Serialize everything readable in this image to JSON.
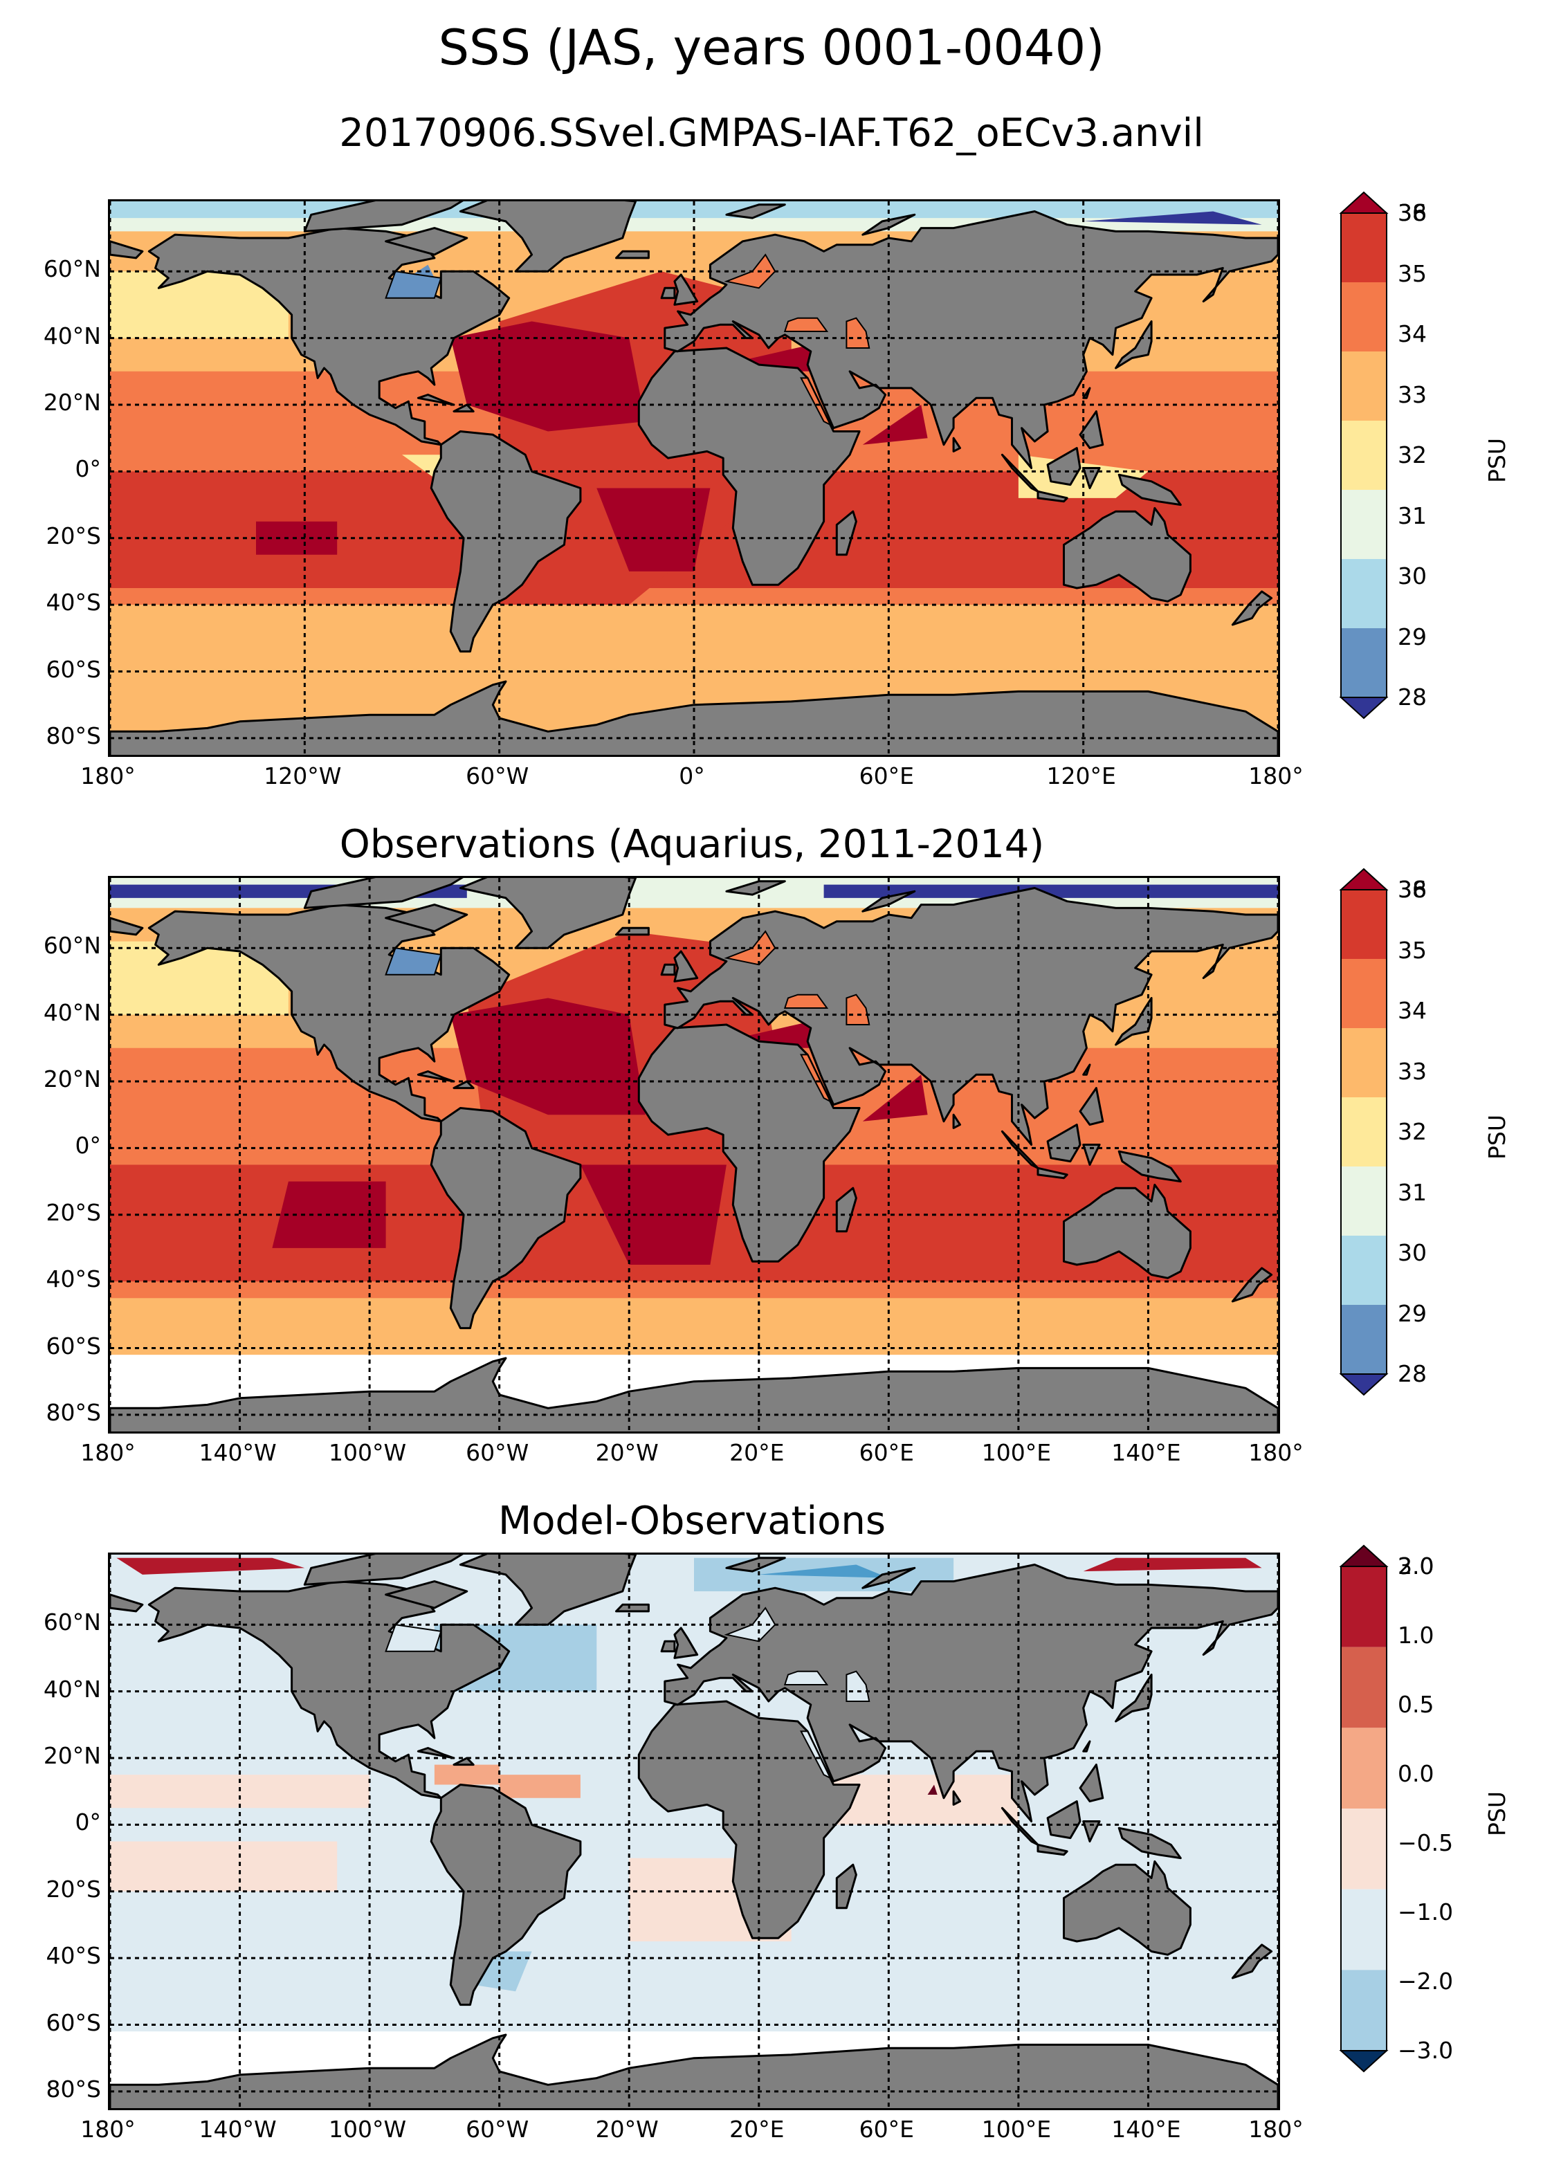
{
  "figure": {
    "title": "SSS (JAS, years 0001-0040)",
    "subtitle": "20170906.SSvel.GMPAS-IAF.T62_oECv3.anvil"
  },
  "colors": {
    "land": "#808080",
    "sss_palette": [
      "#313695",
      "#6592c2",
      "#abd9e9",
      "#e9f5e5",
      "#fee99a",
      "#fdb96b",
      "#f47a4a",
      "#d63a2d",
      "#a50026"
    ],
    "diff_palette": [
      "#053061",
      "#2166ac",
      "#4d9ccb",
      "#a7cfe4",
      "#deebf2",
      "#f9e1d6",
      "#f4a886",
      "#d6604d",
      "#b2182b",
      "#67001f"
    ]
  },
  "panels": [
    {
      "id": "model",
      "title": "",
      "lat_labels": [
        "60°N",
        "40°N",
        "20°N",
        "0°",
        "20°S",
        "40°S",
        "60°S",
        "80°S"
      ],
      "lon_labels": [
        "180°",
        "120°W",
        "60°W",
        "0°",
        "60°E",
        "120°E",
        "180°"
      ],
      "colorbar": {
        "label": "PSU",
        "ticks": [
          "38",
          "36",
          "35",
          "34",
          "33",
          "32",
          "31",
          "30",
          "29",
          "28"
        ]
      }
    },
    {
      "id": "obs",
      "title": "Observations (Aquarius, 2011-2014)",
      "lat_labels": [
        "60°N",
        "40°N",
        "20°N",
        "0°",
        "20°S",
        "40°S",
        "60°S",
        "80°S"
      ],
      "lon_labels": [
        "180°",
        "140°W",
        "100°W",
        "60°W",
        "20°W",
        "20°E",
        "60°E",
        "100°E",
        "140°E",
        "180°"
      ],
      "colorbar": {
        "label": "PSU",
        "ticks": [
          "38",
          "36",
          "35",
          "34",
          "33",
          "32",
          "31",
          "30",
          "29",
          "28"
        ]
      }
    },
    {
      "id": "diff",
      "title": "Model-Observations",
      "lat_labels": [
        "60°N",
        "40°N",
        "20°N",
        "0°",
        "20°S",
        "40°S",
        "60°S",
        "80°S"
      ],
      "lon_labels": [
        "180°",
        "140°W",
        "100°W",
        "60°W",
        "20°W",
        "20°E",
        "60°E",
        "100°E",
        "140°E",
        "180°"
      ],
      "colorbar": {
        "label": "PSU",
        "ticks": [
          "3.0",
          "2.0",
          "1.0",
          "0.5",
          "0.0",
          "−0.5",
          "−1.0",
          "−2.0",
          "−3.0"
        ]
      }
    }
  ]
}
